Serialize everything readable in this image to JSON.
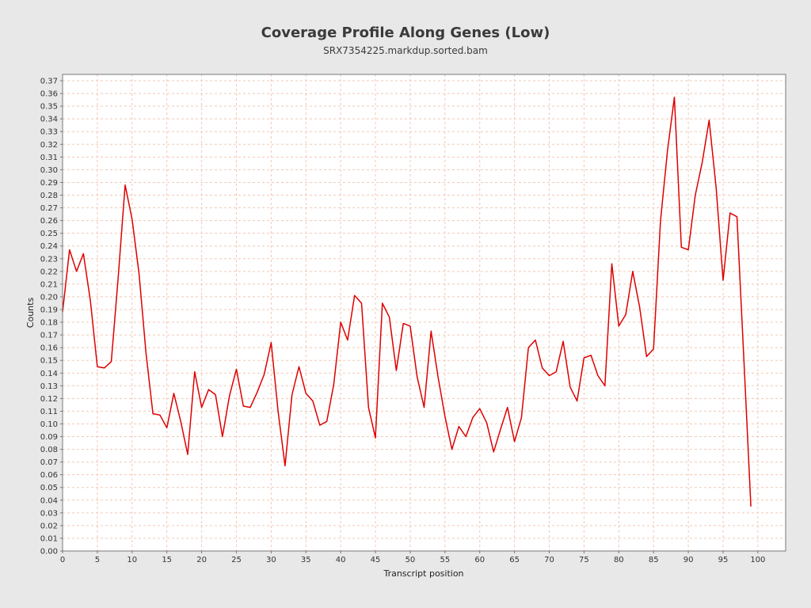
{
  "chart_data": {
    "type": "line",
    "title": "Coverage Profile Along Genes (Low)",
    "subtitle": "SRX7354225.markdup.sorted.bam",
    "xlabel": "Transcript position",
    "ylabel": "Counts",
    "xlim": [
      0,
      104
    ],
    "ylim": [
      0,
      0.375
    ],
    "x_ticks": [
      0,
      5,
      10,
      15,
      20,
      25,
      30,
      35,
      40,
      45,
      50,
      55,
      60,
      65,
      70,
      75,
      80,
      85,
      90,
      95,
      100
    ],
    "y_ticks": [
      0.0,
      0.01,
      0.02,
      0.03,
      0.04,
      0.05,
      0.06,
      0.07,
      0.08,
      0.09,
      0.1,
      0.11,
      0.12,
      0.13,
      0.14,
      0.15,
      0.16,
      0.17,
      0.18,
      0.19,
      0.2,
      0.21,
      0.22,
      0.23,
      0.24,
      0.25,
      0.26,
      0.27,
      0.28,
      0.29,
      0.3,
      0.31,
      0.32,
      0.33,
      0.34,
      0.35,
      0.36,
      0.37
    ],
    "grid": true,
    "series_color": "#dd0000",
    "x": [
      0,
      1,
      2,
      3,
      4,
      5,
      6,
      7,
      8,
      9,
      10,
      11,
      12,
      13,
      14,
      15,
      16,
      17,
      18,
      19,
      20,
      21,
      22,
      23,
      24,
      25,
      26,
      27,
      28,
      29,
      30,
      31,
      32,
      33,
      34,
      35,
      36,
      37,
      38,
      39,
      40,
      41,
      42,
      43,
      44,
      45,
      46,
      47,
      48,
      49,
      50,
      51,
      52,
      53,
      54,
      55,
      56,
      57,
      58,
      59,
      60,
      61,
      62,
      63,
      64,
      65,
      66,
      67,
      68,
      69,
      70,
      71,
      72,
      73,
      74,
      75,
      76,
      77,
      78,
      79,
      80,
      81,
      82,
      83,
      84,
      85,
      86,
      87,
      88,
      89,
      90,
      91,
      92,
      93,
      94,
      95,
      96,
      97,
      98,
      99
    ],
    "y": [
      0.188,
      0.237,
      0.22,
      0.234,
      0.197,
      0.145,
      0.144,
      0.149,
      0.215,
      0.288,
      0.261,
      0.218,
      0.156,
      0.108,
      0.107,
      0.097,
      0.124,
      0.102,
      0.076,
      0.141,
      0.113,
      0.127,
      0.123,
      0.09,
      0.122,
      0.143,
      0.114,
      0.113,
      0.125,
      0.139,
      0.164,
      0.11,
      0.067,
      0.123,
      0.145,
      0.124,
      0.118,
      0.099,
      0.102,
      0.131,
      0.18,
      0.166,
      0.201,
      0.195,
      0.113,
      0.089,
      0.195,
      0.184,
      0.142,
      0.179,
      0.177,
      0.137,
      0.113,
      0.173,
      0.137,
      0.106,
      0.08,
      0.098,
      0.09,
      0.105,
      0.112,
      0.101,
      0.078,
      0.096,
      0.113,
      0.086,
      0.105,
      0.16,
      0.166,
      0.144,
      0.138,
      0.141,
      0.165,
      0.129,
      0.118,
      0.152,
      0.154,
      0.138,
      0.13,
      0.226,
      0.177,
      0.186,
      0.22,
      0.192,
      0.153,
      0.159,
      0.26,
      0.315,
      0.357,
      0.239,
      0.237,
      0.28,
      0.306,
      0.339,
      0.286,
      0.213,
      0.266,
      0.263,
      0.15,
      0.035
    ]
  }
}
